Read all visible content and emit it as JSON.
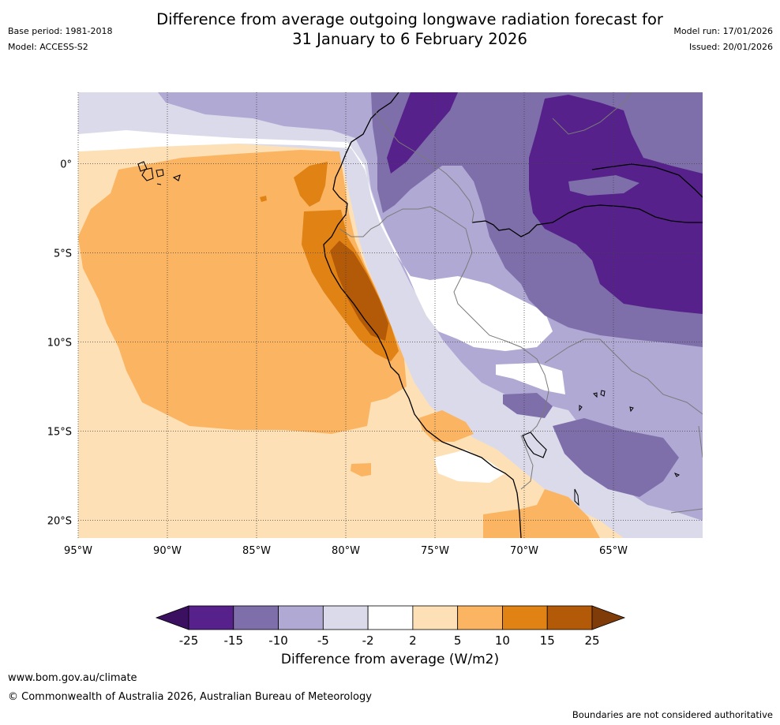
{
  "title": {
    "line1": "Difference from average outgoing longwave radiation forecast for",
    "line2": "31 January to 6 February 2026"
  },
  "meta_left": {
    "base_period": "Base period: 1981-2018",
    "model": "Model: ACCESS-S2"
  },
  "meta_right": {
    "model_run": "Model run: 17/01/2026",
    "issued": "Issued: 20/01/2026"
  },
  "map": {
    "lat_labels": [
      "0°",
      "5°S",
      "10°S",
      "15°S",
      "20°S"
    ],
    "lat_values": [
      0,
      -5,
      -10,
      -15,
      -20
    ],
    "lon_labels": [
      "95°W",
      "90°W",
      "85°W",
      "80°W",
      "75°W",
      "70°W",
      "65°W"
    ],
    "lon_values": [
      -95,
      -90,
      -85,
      -80,
      -75,
      -70,
      -65
    ],
    "extent": {
      "lon_min": -95,
      "lon_max": -60,
      "lat_min": -21,
      "lat_max": 4
    }
  },
  "colorbar": {
    "title": "Difference from average (W/m2)",
    "tick_labels": [
      "-25",
      "-15",
      "-10",
      "-5",
      "-2",
      "2",
      "5",
      "10",
      "15",
      "25"
    ],
    "colors": [
      "#3c1060",
      "#56218a",
      "#7e6fab",
      "#b0a9d3",
      "#dadaeb",
      "#ffffff",
      "#fde0b6",
      "#fbb562",
      "#e08214",
      "#b35a09",
      "#7f3b08"
    ]
  },
  "footer": {
    "site": "www.bom.gov.au/climate",
    "copyright": "© Commonwealth of Australia 2026, Australian Bureau of Meteorology",
    "disclaimer": "Boundaries are not considered authoritative"
  }
}
